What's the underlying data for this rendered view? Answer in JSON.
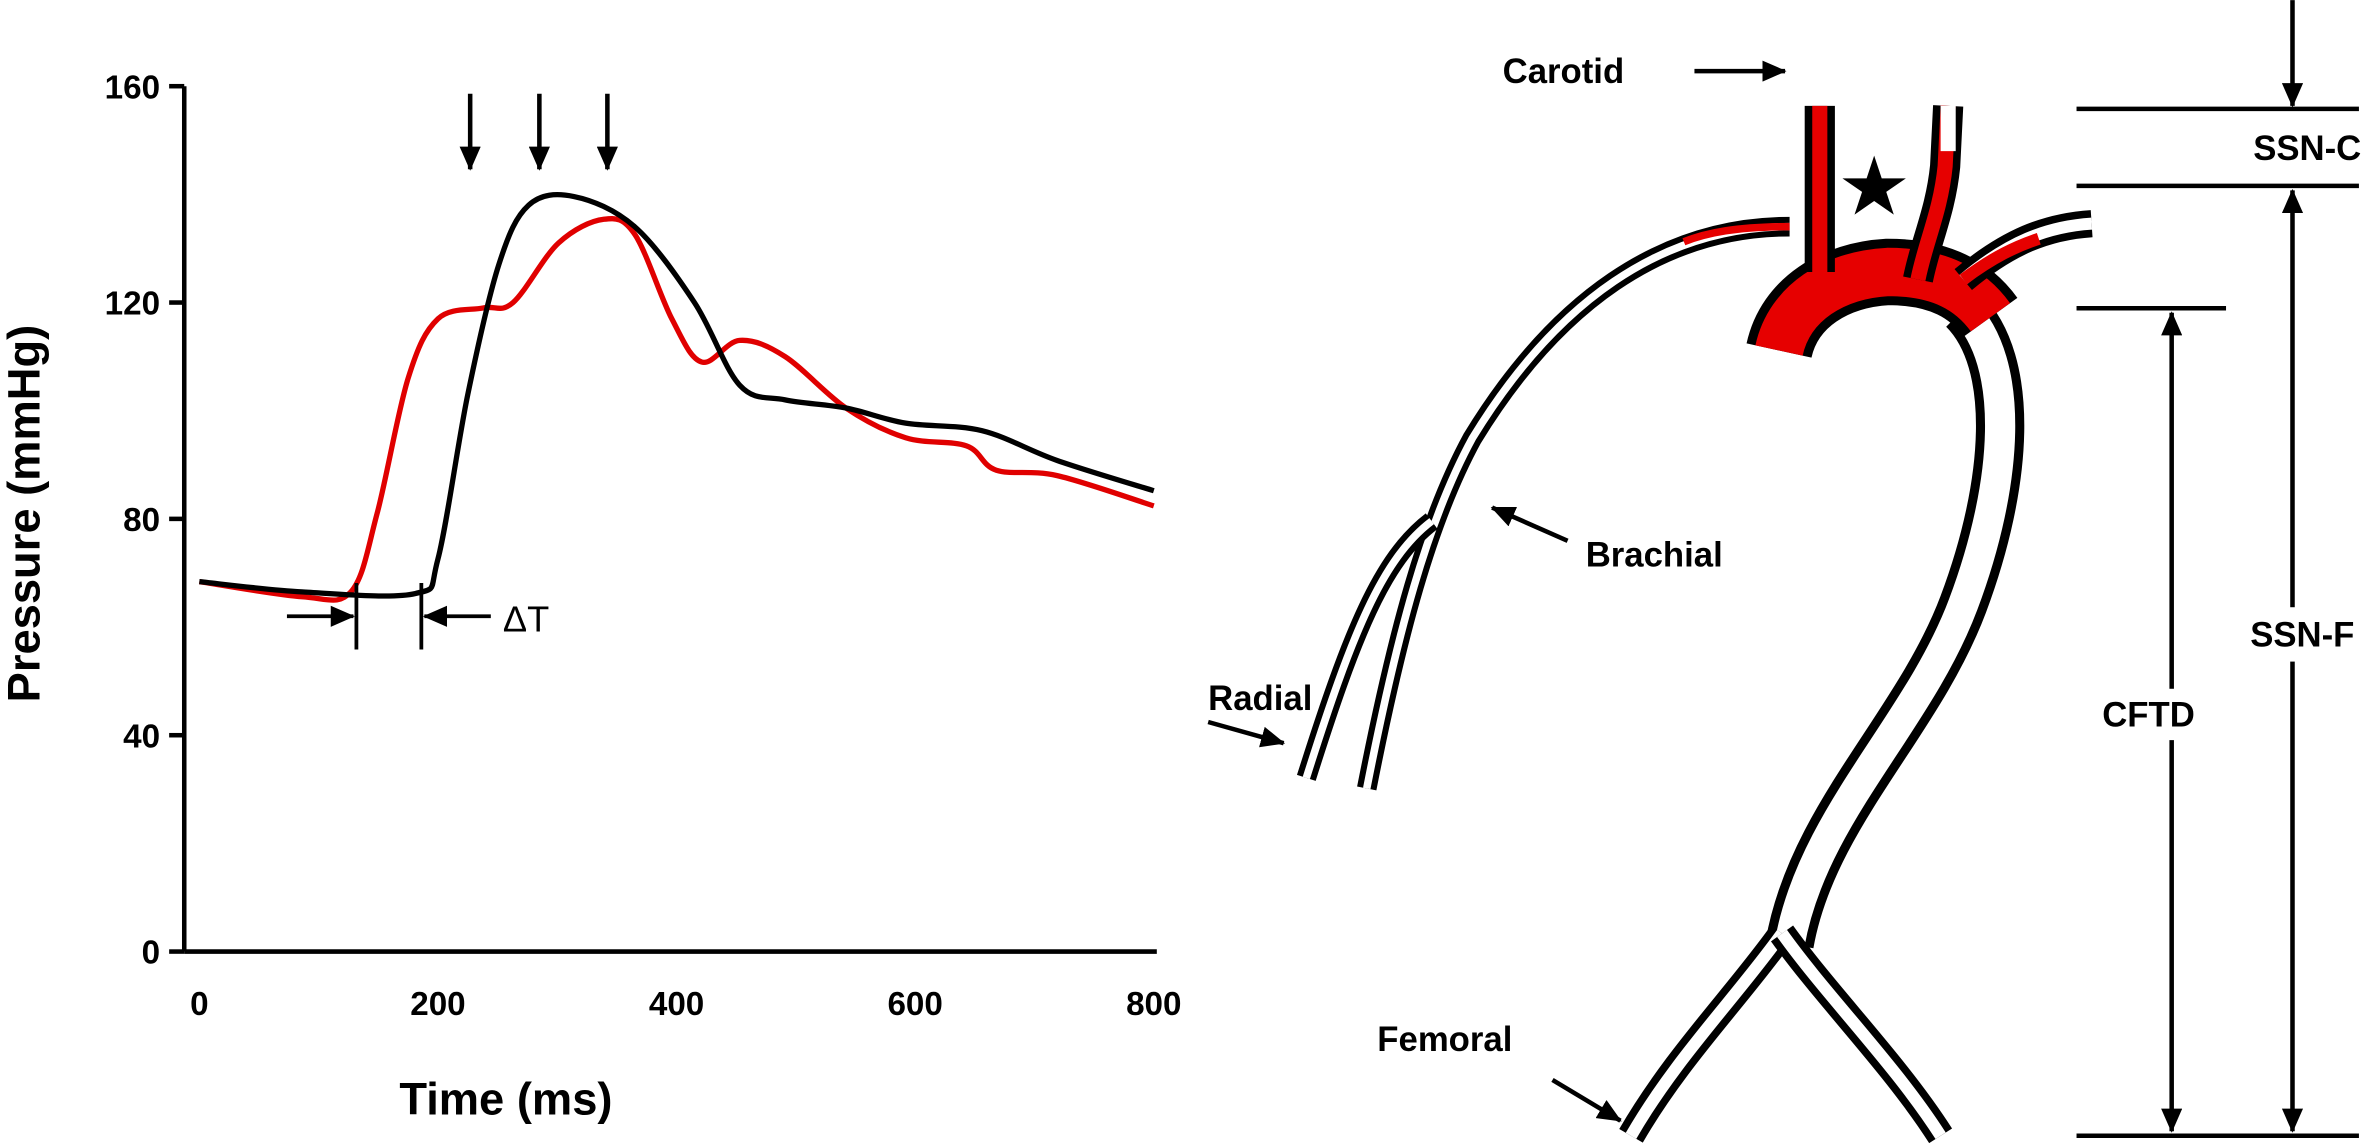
{
  "chart_data": {
    "type": "line",
    "xlabel": "Time (ms)",
    "ylabel": "Pressure (mmHg)",
    "xlim": [
      0,
      800
    ],
    "ylim": [
      0,
      160
    ],
    "xticks": [
      "0",
      "200",
      "400",
      "600",
      "800"
    ],
    "yticks": [
      "0",
      "40",
      "80",
      "120",
      "160"
    ],
    "grid": false,
    "series": [
      {
        "color": "#e00000",
        "x": [
          0,
          86,
          127,
          149,
          175,
          200,
          238,
          263,
          301,
          339,
          365,
          396,
          421,
          453,
          491,
          542,
          592,
          643,
          668,
          719,
          800
        ],
        "y": [
          68.4,
          65.6,
          66.5,
          81,
          106,
          117,
          119,
          120,
          131,
          135.4,
          132.6,
          117,
          109,
          113,
          110,
          100.5,
          95,
          93.5,
          89,
          88,
          82.4
        ]
      },
      {
        "color": "#000000",
        "x": [
          0,
          86,
          181,
          200,
          225,
          251,
          276,
          314,
          365,
          415,
          453,
          491,
          542,
          592,
          656,
          719,
          800
        ],
        "y": [
          68.4,
          66.5,
          66.2,
          72.6,
          103,
          127,
          138,
          139.6,
          134,
          120,
          104.7,
          102,
          100.5,
          97.7,
          96.3,
          90.8,
          85.2
        ]
      }
    ],
    "annotations": {
      "peak_arrows_ms": [
        227,
        285,
        342
      ],
      "delta_t_label": "ΔT"
    }
  },
  "diagram": {
    "labels": {
      "carotid": "Carotid",
      "brachial": "Brachial",
      "radial": "Radial",
      "femoral": "Femoral",
      "ssn_c": "SSN-C",
      "ssn_f": "SSN-F",
      "cftd": "CFTD"
    },
    "highlight_color": "#e60000",
    "star_icon": "star"
  }
}
